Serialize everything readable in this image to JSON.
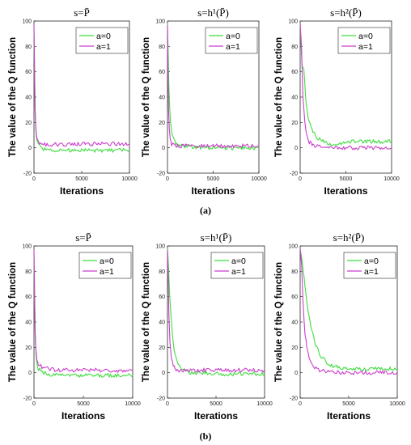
{
  "ylabel": "The value of the Q function",
  "captions": [
    "(a)",
    "(b)"
  ],
  "colors": {
    "a0": "#3fdc3f",
    "a1": "#cc3fcc"
  },
  "chart_data": [
    {
      "panel": "a1",
      "type": "line",
      "title": "s=P̄",
      "xlabel": "Iterations",
      "xlim": [
        0,
        10000
      ],
      "ylim": [
        -20,
        100
      ],
      "xticks": [
        0,
        5000,
        10000
      ],
      "yticks": [
        -20,
        0,
        20,
        40,
        60,
        80,
        100
      ],
      "legend_position": "top-right",
      "series": [
        {
          "name": "a=0",
          "x": [
            0,
            60,
            120,
            200,
            300,
            450,
            700,
            1000,
            1500,
            2000,
            3000,
            4000,
            5000,
            6000,
            7000,
            8000,
            9000,
            10000
          ],
          "y": [
            95,
            60,
            28,
            13,
            6,
            2,
            0,
            -1,
            -1.5,
            -2,
            -2,
            -2,
            -2,
            -2,
            -2,
            -2,
            -2,
            -2
          ]
        },
        {
          "name": "a=1",
          "x": [
            0,
            60,
            120,
            200,
            300,
            450,
            700,
            1000,
            1500,
            2000,
            3000,
            4000,
            5000,
            6000,
            7000,
            8000,
            9000,
            10000
          ],
          "y": [
            97,
            62,
            30,
            15,
            8,
            4,
            3,
            2.5,
            2.5,
            2.5,
            2.5,
            2.5,
            3,
            3,
            3,
            3,
            3,
            3
          ]
        }
      ]
    },
    {
      "panel": "a2",
      "type": "line",
      "title": "s=h¹(P̄)",
      "xlabel": "Iterations",
      "xlim": [
        0,
        10000
      ],
      "ylim": [
        -20,
        100
      ],
      "xticks": [
        0,
        5000,
        10000
      ],
      "yticks": [
        -20,
        0,
        20,
        40,
        60,
        80,
        100
      ],
      "legend_position": "top-right",
      "series": [
        {
          "name": "a=0",
          "x": [
            0,
            80,
            150,
            250,
            400,
            600,
            900,
            1200,
            1800,
            2500,
            3500,
            5000,
            6000,
            7000,
            8000,
            9000,
            10000
          ],
          "y": [
            98,
            75,
            50,
            30,
            15,
            8,
            4,
            2,
            1,
            1,
            0.5,
            0,
            0,
            0,
            0,
            0,
            0
          ]
        },
        {
          "name": "a=1",
          "x": [
            0,
            60,
            120,
            200,
            300,
            450,
            700,
            1000,
            1500,
            2000,
            3000,
            4000,
            5000,
            6000,
            7000,
            8000,
            9000,
            10000
          ],
          "y": [
            97,
            60,
            30,
            15,
            7,
            3,
            2,
            1.5,
            1.5,
            1.5,
            1.5,
            1.5,
            1.5,
            1.5,
            1.5,
            1.5,
            1.5,
            1.5
          ]
        }
      ]
    },
    {
      "panel": "a3",
      "type": "line",
      "title": "s=h²(P̄)",
      "xlabel": "Iterations",
      "xlim": [
        0,
        10000
      ],
      "ylim": [
        -20,
        100
      ],
      "xticks": [
        0,
        5000,
        10000
      ],
      "yticks": [
        -20,
        0,
        20,
        40,
        60,
        80,
        100
      ],
      "legend_position": "top-right",
      "series": [
        {
          "name": "a=0",
          "x": [
            0,
            200,
            400,
            600,
            800,
            1000,
            1300,
            1600,
            2000,
            2500,
            3000,
            3500,
            4000,
            4500,
            5000,
            6000,
            7000,
            8000,
            9000,
            10000
          ],
          "y": [
            98,
            65,
            62,
            40,
            28,
            20,
            15,
            10,
            7,
            5,
            4,
            3,
            3,
            3,
            5,
            5,
            5,
            5,
            5,
            5
          ]
        },
        {
          "name": "a=1",
          "x": [
            0,
            150,
            300,
            500,
            700,
            900,
            1200,
            1500,
            2000,
            3000,
            4000,
            5000,
            6000,
            7000,
            8000,
            9000,
            10000
          ],
          "y": [
            98,
            80,
            40,
            20,
            10,
            5,
            3,
            2,
            1,
            0,
            0,
            0,
            0,
            0,
            0,
            0,
            0
          ]
        }
      ]
    },
    {
      "panel": "b1",
      "type": "line",
      "title": "s=P̄",
      "xlabel": "Iterations",
      "xlim": [
        0,
        10000
      ],
      "ylim": [
        -20,
        100
      ],
      "xticks": [
        0,
        5000,
        10000
      ],
      "yticks": [
        -20,
        0,
        20,
        40,
        60,
        80,
        100
      ],
      "legend_position": "top-right",
      "series": [
        {
          "name": "a=0",
          "x": [
            0,
            60,
            120,
            200,
            300,
            450,
            700,
            1000,
            1500,
            2000,
            3000,
            4000,
            5000,
            6000,
            7000,
            8000,
            9000,
            10000
          ],
          "y": [
            95,
            60,
            30,
            15,
            7,
            3,
            1,
            0,
            -1,
            -2,
            -2,
            -2,
            -2,
            -2,
            -2,
            -2,
            -2,
            -2
          ]
        },
        {
          "name": "a=1",
          "x": [
            0,
            60,
            120,
            200,
            300,
            450,
            700,
            1000,
            1500,
            2000,
            3000,
            4000,
            5000,
            6000,
            7000,
            8000,
            9000,
            10000
          ],
          "y": [
            97,
            65,
            33,
            18,
            10,
            6,
            5,
            4,
            3,
            2.5,
            2,
            2,
            2,
            2,
            2,
            2,
            1.5,
            1.5
          ]
        }
      ]
    },
    {
      "panel": "b2",
      "type": "line",
      "title": "s=h¹(P̄)",
      "xlabel": "Iterations",
      "xlim": [
        0,
        10000
      ],
      "ylim": [
        -20,
        100
      ],
      "xticks": [
        0,
        5000,
        10000
      ],
      "yticks": [
        -20,
        0,
        20,
        40,
        60,
        80,
        100
      ],
      "legend_position": "top-right",
      "series": [
        {
          "name": "a=0",
          "x": [
            0,
            100,
            200,
            350,
            500,
            700,
            900,
            1200,
            1600,
            2000,
            2500,
            3000,
            4000,
            5000,
            6000,
            7000,
            8000,
            9000,
            10000
          ],
          "y": [
            98,
            85,
            65,
            45,
            30,
            18,
            10,
            6,
            3,
            1,
            0,
            0,
            -0.5,
            -1,
            -1,
            -1,
            -1,
            -1,
            -1
          ]
        },
        {
          "name": "a=1",
          "x": [
            0,
            80,
            150,
            250,
            400,
            600,
            900,
            1200,
            1600,
            2000,
            3000,
            4000,
            5000,
            6000,
            7000,
            8000,
            9000,
            10000
          ],
          "y": [
            97,
            75,
            45,
            25,
            12,
            5,
            3,
            2,
            2,
            2,
            2,
            2,
            2,
            2,
            2,
            2,
            2,
            2
          ]
        }
      ]
    },
    {
      "panel": "b3",
      "type": "line",
      "title": "s=h²(P̄)",
      "xlabel": "Iterations",
      "xlim": [
        0,
        10000
      ],
      "ylim": [
        -20,
        100
      ],
      "xticks": [
        0,
        5000,
        10000
      ],
      "yticks": [
        -20,
        0,
        20,
        40,
        60,
        80,
        100
      ],
      "legend_position": "top-right",
      "series": [
        {
          "name": "a=0",
          "x": [
            0,
            200,
            400,
            700,
            1000,
            1300,
            1600,
            2000,
            2500,
            3000,
            3500,
            4000,
            4500,
            5000,
            6000,
            7000,
            8000,
            9000,
            10000
          ],
          "y": [
            98,
            88,
            75,
            55,
            40,
            30,
            22,
            15,
            10,
            7,
            5,
            4,
            3,
            3,
            3,
            3,
            3,
            3,
            3
          ]
        },
        {
          "name": "a=1",
          "x": [
            0,
            150,
            300,
            500,
            800,
            1100,
            1500,
            2000,
            3000,
            4000,
            5000,
            6000,
            7000,
            8000,
            9000,
            10000
          ],
          "y": [
            98,
            85,
            55,
            30,
            15,
            8,
            4,
            2,
            1,
            0,
            0,
            0,
            0,
            0,
            0,
            0
          ]
        }
      ]
    }
  ]
}
